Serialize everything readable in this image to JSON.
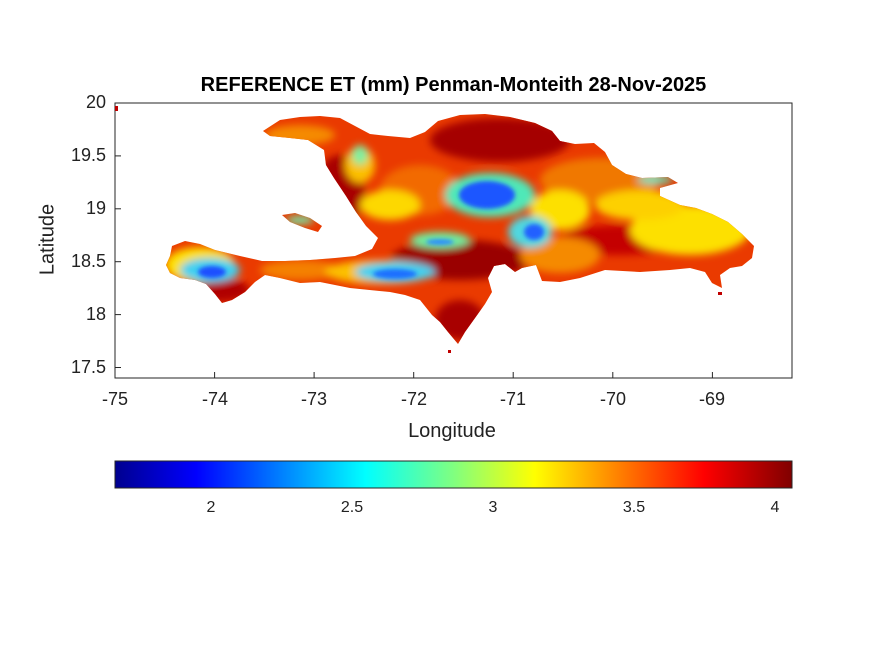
{
  "map": {
    "title": "REFERENCE ET (mm) Penman-Monteith 28-Nov-2025",
    "xlabel": "Longitude",
    "ylabel": "Latitude",
    "xlim": [
      -75,
      -68.2
    ],
    "ylim": [
      17.4,
      20
    ],
    "x_ticks": [
      "-75",
      "-74",
      "-73",
      "-72",
      "-71",
      "-70",
      "-69"
    ],
    "y_ticks": [
      "20",
      "19.5",
      "19",
      "18.5",
      "18",
      "17.5"
    ],
    "colorbar": {
      "colormap": "jet",
      "range": [
        1.65,
        4.05
      ],
      "ticks": [
        "2",
        "2.5",
        "3",
        "3.5",
        "4"
      ]
    },
    "colors": {
      "high": "#9a0000",
      "upper": "#e21b00",
      "mid": "#f47f00",
      "low_mid": "#fdd800",
      "low": "#4fe8b8",
      "lowest": "#1f56ff"
    }
  }
}
